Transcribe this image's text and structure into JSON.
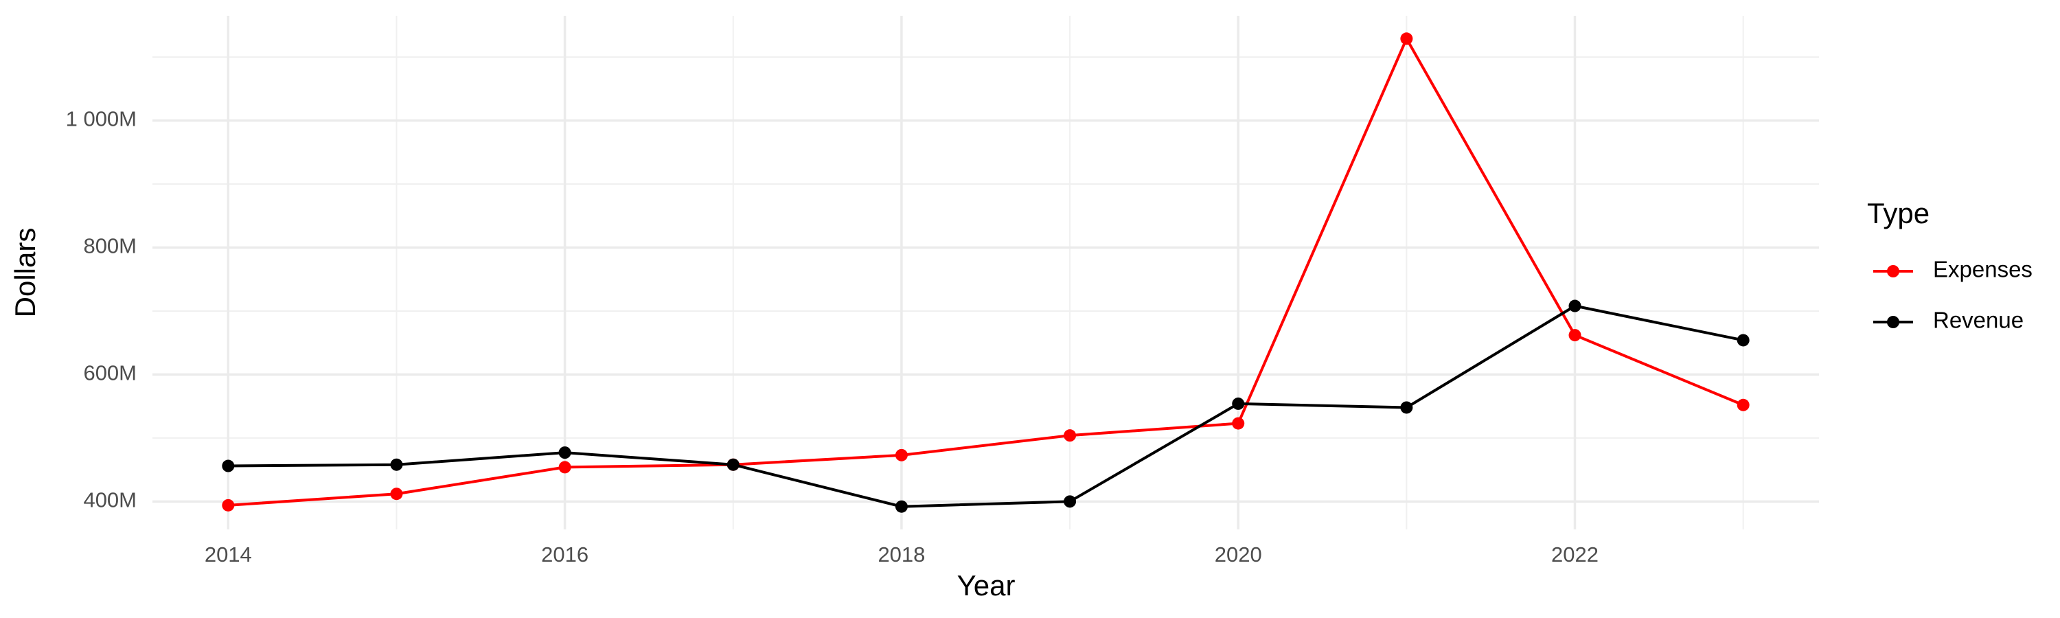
{
  "chart_data": {
    "type": "line",
    "x_label": "Year",
    "y_label": "Dollars",
    "legend_title": "Type",
    "x": [
      2014,
      2015,
      2016,
      2017,
      2018,
      2019,
      2020,
      2021,
      2022,
      2023
    ],
    "series": [
      {
        "name": "Expenses",
        "color": "#ff0000",
        "values": [
          394,
          412,
          454,
          458,
          473,
          504,
          523,
          1129,
          662,
          552
        ]
      },
      {
        "name": "Revenue",
        "color": "#000000",
        "values": [
          456,
          458,
          477,
          458,
          392,
          400,
          554,
          548,
          708,
          654
        ]
      }
    ],
    "xlim": [
      2013.55,
      2023.45
    ],
    "xticks": [
      2014,
      2016,
      2018,
      2020,
      2022
    ],
    "ylim": [
      356,
      1165
    ],
    "yticks": [
      {
        "value": 400,
        "label": "400M"
      },
      {
        "value": 600,
        "label": "600M"
      },
      {
        "value": 800,
        "label": "800M"
      },
      {
        "value": 1000,
        "label": "1 000M"
      }
    ],
    "grid": true,
    "legend": "right"
  }
}
